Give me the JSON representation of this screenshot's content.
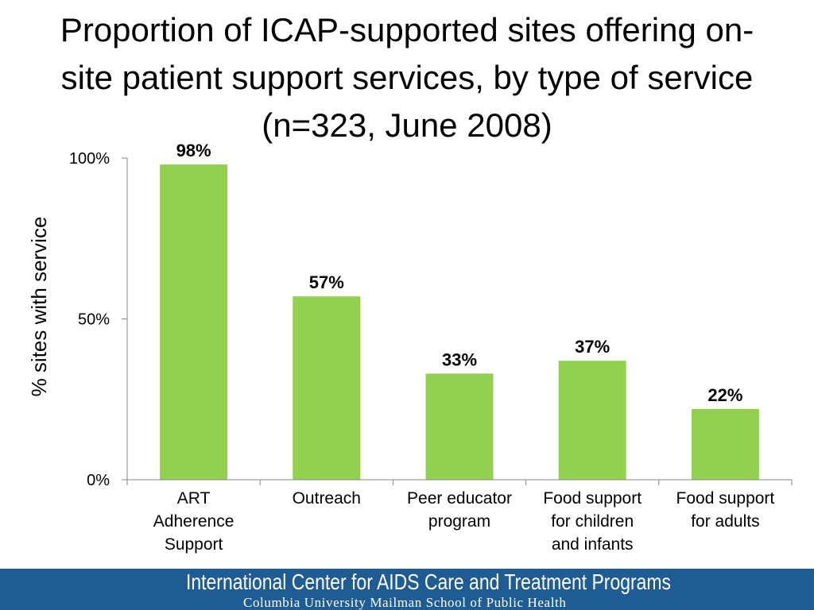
{
  "title_lines": [
    "Proportion of ICAP-supported sites offering on-",
    "site patient support services, by type of service",
    "(n=323, June 2008)"
  ],
  "chart_data": {
    "type": "bar",
    "title": "Proportion of ICAP-supported sites offering on-site patient support services, by type of service (n=323, June 2008)",
    "categories": [
      [
        "ART",
        "Adherence",
        "Support"
      ],
      [
        "Outreach"
      ],
      [
        "Peer educator",
        "program"
      ],
      [
        "Food support",
        "for children",
        "and infants"
      ],
      [
        "Food support",
        "for adults"
      ]
    ],
    "values": [
      98,
      57,
      33,
      37,
      22
    ],
    "data_labels": [
      "98%",
      "57%",
      "33%",
      "37%",
      "22%"
    ],
    "ylabel": "% sites with service",
    "xlabel": "",
    "ylim": [
      0,
      100
    ],
    "yticks": [
      0,
      50,
      100
    ],
    "ytick_labels": [
      "0%",
      "50%",
      "100%"
    ],
    "bar_color": "#92d050",
    "grid": false,
    "legend": "none"
  },
  "footer": {
    "organization": "International Center for AIDS Care and Treatment Programs",
    "affiliation": "Columbia University Mailman School of Public Health",
    "background_color": "#1f5c94"
  }
}
